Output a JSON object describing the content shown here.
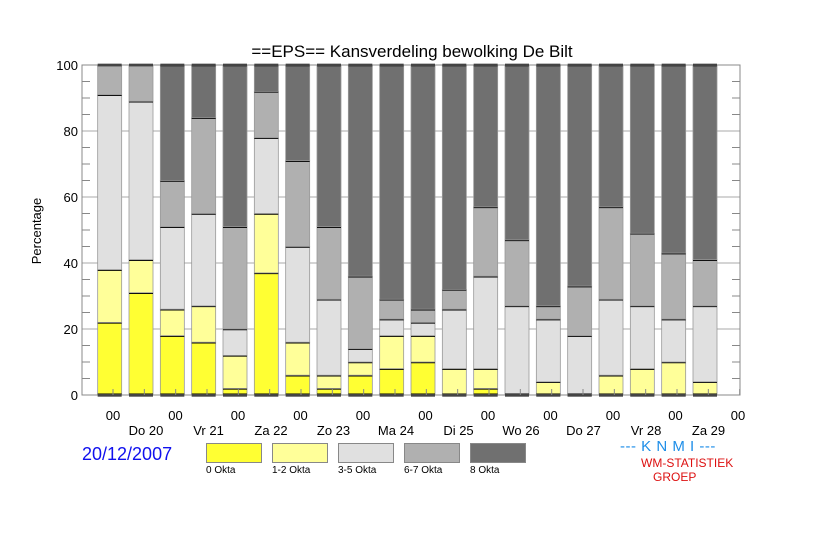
{
  "chart_data": {
    "type": "bar",
    "stacked": true,
    "title": "==EPS==   Kansverdeling bewolking De Bilt",
    "xlabel": "",
    "ylabel": "Percentage",
    "ylim": [
      0,
      100
    ],
    "yticks": [
      0,
      20,
      40,
      60,
      80,
      100
    ],
    "grid": true,
    "x_time_labels": [
      "00",
      "00",
      "00",
      "00",
      "00",
      "00",
      "00",
      "00",
      "00",
      "00",
      "00"
    ],
    "x_day_labels": [
      "Do 20",
      "Vr 21",
      "Za 22",
      "Zo 23",
      "Ma 24",
      "Di 25",
      "Wo 26",
      "Do 27",
      "Vr 28",
      "Za 29"
    ],
    "categories": [
      "Do 20 00",
      "Do 20 12",
      "Vr 21 00",
      "Vr 21 12",
      "Za 22 00",
      "Za 22 12",
      "Zo 23 00",
      "Zo 23 12",
      "Ma 24 00",
      "Ma 24 12",
      "Di 25 00",
      "Di 25 12",
      "Wo 26 00",
      "Wo 26 12",
      "Do 27 00",
      "Do 27 12",
      "Vr 28 00",
      "Vr 28 12",
      "Za 29 00",
      "Za 29 12"
    ],
    "series": [
      {
        "name": "0 Okta",
        "color": "#ffff33",
        "values": [
          22,
          31,
          18,
          16,
          2,
          37,
          6,
          2,
          6,
          8,
          10,
          0,
          2,
          0,
          0,
          0,
          0,
          0,
          0,
          0
        ]
      },
      {
        "name": "1-2 Okta",
        "color": "#ffff99",
        "values": [
          16,
          10,
          8,
          11,
          10,
          18,
          10,
          4,
          4,
          10,
          8,
          8,
          6,
          0,
          4,
          0,
          6,
          8,
          10,
          4
        ]
      },
      {
        "name": "3-5 Okta",
        "color": "#e0e0e0",
        "values": [
          53,
          48,
          25,
          28,
          8,
          23,
          29,
          23,
          4,
          5,
          4,
          18,
          28,
          27,
          19,
          18,
          23,
          19,
          13,
          23
        ]
      },
      {
        "name": "6-7 Okta",
        "color": "#b0b0b0",
        "values": [
          9,
          11,
          14,
          29,
          31,
          14,
          26,
          22,
          22,
          6,
          4,
          6,
          21,
          20,
          4,
          15,
          28,
          22,
          20,
          14
        ]
      },
      {
        "name": "8 Okta",
        "color": "#707070",
        "values": [
          0,
          0,
          35,
          16,
          49,
          8,
          29,
          49,
          64,
          71,
          74,
          68,
          43,
          53,
          73,
          67,
          43,
          51,
          57,
          59
        ]
      }
    ],
    "legend_position": "bottom"
  },
  "footer": {
    "date": "20/12/2007",
    "knmi": "--- K N M I ---",
    "group_line1": "WM-STATISTIEK",
    "group_line2": "GROEP"
  }
}
